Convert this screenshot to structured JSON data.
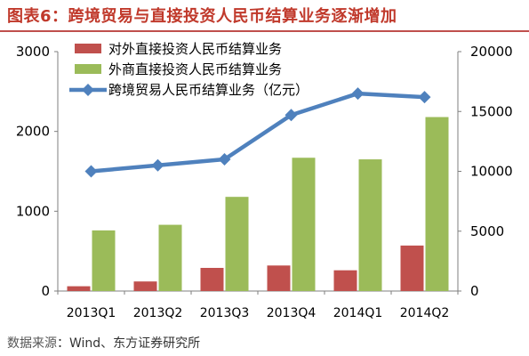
{
  "title": "图表6：跨境贸易与直接投资人民币结算业务逐渐增加",
  "source_label": "数据来源",
  "source_text": "Wind、东方证券研究所",
  "colors": {
    "title": "#c0392b",
    "bar1": "#c0504d",
    "bar2": "#9bbb59",
    "line": "#4f81bd"
  },
  "chart_data": {
    "type": "bar",
    "categories": [
      "2013Q1",
      "2013Q2",
      "2013Q3",
      "2013Q4",
      "2014Q1",
      "2014Q2"
    ],
    "series": [
      {
        "name": "对外直接投资人民币结算业务",
        "type": "bar",
        "axis": "left",
        "values": [
          60,
          120,
          290,
          320,
          260,
          570
        ]
      },
      {
        "name": "外商直接投资人民币结算业务",
        "type": "bar",
        "axis": "left",
        "values": [
          760,
          830,
          1180,
          1670,
          1650,
          2180
        ]
      },
      {
        "name": "跨境贸易人民币结算业务（亿元）",
        "type": "line",
        "axis": "right",
        "values": [
          10000,
          10500,
          11000,
          14700,
          16500,
          16200
        ]
      }
    ],
    "y_left": {
      "ylim": [
        0,
        3000
      ],
      "ticks": [
        0,
        1000,
        2000,
        3000
      ]
    },
    "y_right": {
      "ylim": [
        0,
        20000
      ],
      "ticks": [
        0,
        5000,
        10000,
        15000,
        20000
      ]
    },
    "legend_position": "top-left",
    "grid": false
  }
}
